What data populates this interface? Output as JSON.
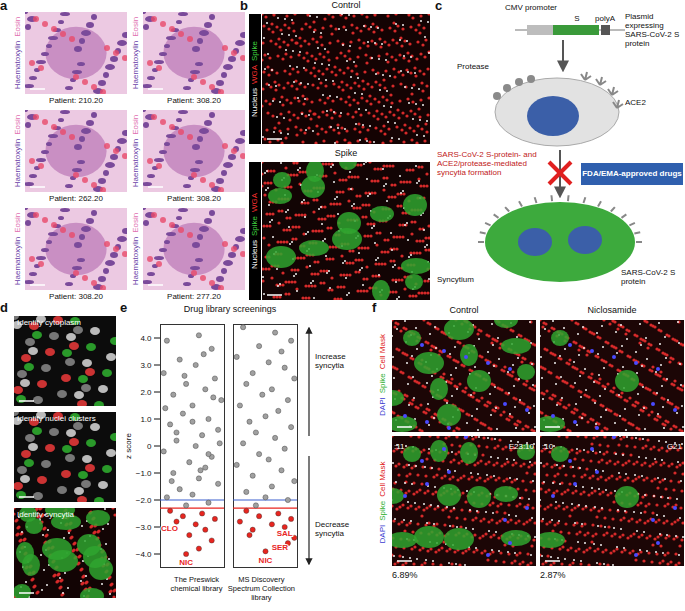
{
  "panel_letters": [
    "a",
    "b",
    "c",
    "d",
    "e",
    "f"
  ],
  "a": {
    "stain": [
      {
        "name": "Haematoxylin",
        "color": "#6a3fa8"
      },
      {
        "name": "Eosin",
        "color": "#e06fb0"
      }
    ],
    "patients": [
      "Patient: 210.20",
      "Patient: 308.20",
      "Patient: 262.20",
      "Patient: 308.20",
      "Patient: 308.20",
      "Patient: 277.20"
    ]
  },
  "b": {
    "titles": [
      "Control",
      "Spike"
    ],
    "channels": [
      {
        "name": "Spike",
        "color": "#3fd03f"
      },
      {
        "name": "WGA",
        "color": "#ff3030"
      },
      {
        "name": "Nucleus",
        "color": "#ffffff"
      }
    ]
  },
  "c": {
    "promoter": "CMV promoter",
    "gene": "S",
    "polya": "polyA",
    "plasmid": "Plasmid expressing SARS-CoV-2 S protein",
    "protease": "Protease",
    "receptor": "ACE2",
    "process": "SARS-CoV-2 S-protein- and ACE2/protease-mediated syncytia formation",
    "drugs": "FDA/EMA-approved drugs",
    "syncytium": "Syncytium",
    "spike": "SARS-CoV-2 S protein"
  },
  "d": {
    "steps": [
      "Identify cytoplasm",
      "Identify nuclei clusters",
      "Identify syncytia"
    ]
  },
  "chart_data": {
    "type": "scatter",
    "title": "Drug library screenings",
    "y_label": "z score",
    "xlim": [
      -1,
      1
    ],
    "ylim": [
      -4.5,
      4.5
    ],
    "yticks": [
      {
        "value": 4,
        "label": "4.0"
      },
      {
        "value": 3,
        "label": "3.0"
      },
      {
        "value": 2,
        "label": "2.0"
      },
      {
        "value": 1,
        "label": "1.0"
      },
      {
        "value": 0,
        "label": "0"
      },
      {
        "value": -1,
        "label": "−1.0"
      },
      {
        "value": -2,
        "label": "−2.0"
      },
      {
        "value": -3,
        "label": "−3.0"
      },
      {
        "value": -4,
        "label": "−4.0"
      }
    ],
    "tick_labels": "y",
    "grid": false,
    "direction_labels": [
      "Increase syncytia",
      "Decrease syncytia"
    ],
    "thresholds": [
      {
        "value": -2,
        "color": "#3a5fcd",
        "line_style": "dashed"
      },
      {
        "value": -2.3,
        "color": "#e8251f",
        "line_style": "dashed"
      }
    ],
    "series": [
      {
        "name": "The Preswick chemical library",
        "x": [
          -0.8,
          0.2,
          0.6,
          -0.4,
          0.1,
          -0.9,
          0.7,
          -0.2,
          0.4,
          -0.6,
          0.9,
          0,
          -0.3,
          0.5,
          -0.7,
          0.8,
          0.3,
          -0.5,
          0.1,
          -0.9,
          0.6,
          -0.1,
          0.4,
          -0.6,
          0.2,
          0.8,
          -0.4,
          0,
          -0.8,
          0.5,
          -0.2,
          -0.7,
          0.3,
          -0.3,
          0.7,
          -0.5,
          0.1,
          0.4,
          -0.1,
          0.6,
          0.2,
          -0.2,
          -0.5,
          0.5,
          0,
          -0.85,
          0.85,
          0.25,
          -0.25,
          0.65,
          -0.65,
          0.35
        ],
        "values": [
          3.9,
          4.1,
          3.6,
          3.2,
          3.0,
          2.7,
          2.5,
          2.3,
          2.1,
          1.9,
          1.7,
          1.5,
          1.2,
          1.0,
          0.8,
          0.6,
          0.4,
          0.2,
          0,
          -0.2,
          -0.4,
          -0.6,
          -0.8,
          -1.0,
          -1.2,
          -1.4,
          -1.6,
          -1.8,
          -1.9,
          -2.1,
          -2.2,
          -2.4,
          -2.5,
          -2.6,
          -2.7,
          -2.8,
          -2.9,
          -3.1,
          -3.3,
          -3.5,
          -3.8,
          -4.0,
          0.5,
          -0.3,
          0.9,
          1.4,
          0.1,
          -0.9,
          2.6,
          1.8,
          -1.3,
          3.4
        ],
        "colors": [
          "#a0a0a0",
          "#a0a0a0",
          "#a0a0a0",
          "#a0a0a0",
          "#a0a0a0",
          "#a0a0a0",
          "#a0a0a0",
          "#a0a0a0",
          "#a0a0a0",
          "#a0a0a0",
          "#a0a0a0",
          "#a0a0a0",
          "#a0a0a0",
          "#a0a0a0",
          "#a0a0a0",
          "#a0a0a0",
          "#a0a0a0",
          "#a0a0a0",
          "#a0a0a0",
          "#a0a0a0",
          "#a0a0a0",
          "#a0a0a0",
          "#a0a0a0",
          "#a0a0a0",
          "#a0a0a0",
          "#a0a0a0",
          "#a0a0a0",
          "#a0a0a0",
          "#a0a0a0",
          "#a0a0a0",
          "#a0a0a0",
          "#e8251f",
          "#e8251f",
          "#e8251f",
          "#e8251f",
          "#e8251f",
          "#e8251f",
          "#e8251f",
          "#e8251f",
          "#e8251f",
          "#e8251f",
          "#e8251f",
          "#a0a0a0",
          "#a0a0a0",
          "#a0a0a0",
          "#a0a0a0",
          "#a0a0a0",
          "#a0a0a0",
          "#a0a0a0",
          "#a0a0a0",
          "#a0a0a0",
          "#a0a0a0"
        ]
      },
      {
        "name": "MS Discovery Spectrum Collection library",
        "x": [
          -0.7,
          0.3,
          0.8,
          -0.2,
          0.5,
          -0.9,
          0.1,
          0.6,
          -0.4,
          0.9,
          -0.6,
          0.2,
          -0.1,
          0.7,
          -0.8,
          0.4,
          0,
          -0.5,
          0.8,
          -0.3,
          0.3,
          -0.7,
          0.6,
          -0.2,
          0.1,
          -0.9,
          0.5,
          -0.4,
          0.9,
          0.2,
          -0.6,
          0,
          0.7,
          -0.3,
          -0.6,
          0.4,
          -0.2,
          0.8,
          -0.8,
          0.2,
          0.6,
          -0.4,
          0.9,
          0.7,
          0,
          -0.5
        ],
        "values": [
          4.4,
          4.2,
          3.9,
          3.7,
          3.5,
          3.3,
          3.1,
          2.9,
          2.7,
          2.5,
          2.3,
          2.1,
          1.9,
          1.7,
          1.5,
          1.3,
          1.1,
          0.9,
          0.7,
          0.5,
          0.3,
          0.1,
          -0.1,
          -0.3,
          -0.5,
          -0.7,
          -0.9,
          -1.1,
          -1.3,
          -1.5,
          -1.7,
          -1.9,
          -2.0,
          -2.2,
          -2.4,
          -2.5,
          -2.6,
          -2.7,
          -2.8,
          -2.9,
          -3.0,
          -3.1,
          -3.4,
          -3.6,
          -3.9,
          -3.3
        ],
        "colors": [
          "#a0a0a0",
          "#a0a0a0",
          "#a0a0a0",
          "#a0a0a0",
          "#a0a0a0",
          "#a0a0a0",
          "#a0a0a0",
          "#a0a0a0",
          "#a0a0a0",
          "#a0a0a0",
          "#a0a0a0",
          "#a0a0a0",
          "#a0a0a0",
          "#a0a0a0",
          "#a0a0a0",
          "#a0a0a0",
          "#a0a0a0",
          "#a0a0a0",
          "#a0a0a0",
          "#a0a0a0",
          "#a0a0a0",
          "#a0a0a0",
          "#a0a0a0",
          "#a0a0a0",
          "#a0a0a0",
          "#a0a0a0",
          "#a0a0a0",
          "#a0a0a0",
          "#a0a0a0",
          "#a0a0a0",
          "#a0a0a0",
          "#a0a0a0",
          "#a0a0a0",
          "#a0a0a0",
          "#e8251f",
          "#e8251f",
          "#e8251f",
          "#e8251f",
          "#e8251f",
          "#e8251f",
          "#e8251f",
          "#e8251f",
          "#e8251f",
          "#e8251f",
          "#e8251f",
          "#e8251f"
        ]
      }
    ],
    "annotations": [
      {
        "series": "The Preswick chemical library",
        "x": -0.72,
        "y": -3.05,
        "text": "CLO",
        "color": "#e8251f"
      },
      {
        "series": "The Preswick chemical library",
        "x": -0.2,
        "y": -4.3,
        "text": "NIC",
        "color": "#e8251f"
      },
      {
        "series": "MS Discovery Spectrum Collection library",
        "x": 0,
        "y": -4.25,
        "text": "NIC",
        "color": "#e8251f"
      },
      {
        "series": "MS Discovery Spectrum Collection library",
        "x": 0.6,
        "y": -3.22,
        "text": "SAL",
        "color": "#e8251f"
      },
      {
        "series": "MS Discovery Spectrum Collection library",
        "x": 0.45,
        "y": -3.75,
        "text": "SER",
        "color": "#e8251f"
      }
    ]
  },
  "f": {
    "titles": [
      "Control",
      "Niclosamide"
    ],
    "channels": [
      {
        "name": "DAPI",
        "color": "#3a3ad0"
      },
      {
        "name": "Spike",
        "color": "#2fb02f"
      },
      {
        "name": "Cell Mask",
        "color": "#e02020"
      }
    ],
    "well_labels": [
      [
        ":11",
        "E23:10"
      ],
      [
        ":10",
        "G21"
      ]
    ],
    "percentages": [
      "6.89%",
      "2.87%"
    ]
  }
}
